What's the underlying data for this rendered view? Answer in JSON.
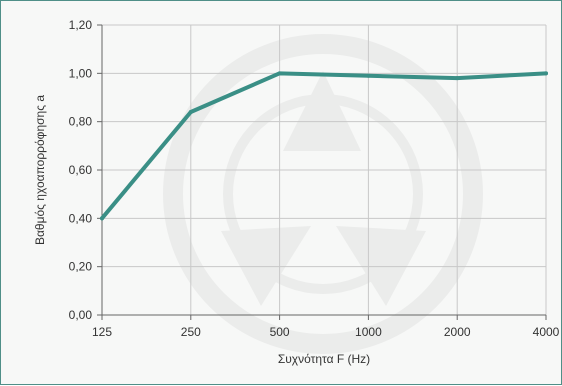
{
  "chart_data": {
    "type": "line",
    "title": "",
    "xlabel": "Συχνότητα F (Hz)",
    "ylabel": "Βαθμός ηχοαπορρόφησης a",
    "categories": [
      "125",
      "250",
      "500",
      "1000",
      "2000",
      "4000"
    ],
    "y_ticks": [
      "0,00",
      "0,20",
      "0,40",
      "0,60",
      "0,80",
      "1,00",
      "1,20"
    ],
    "ylim": [
      0,
      1.2
    ],
    "grid": true,
    "legend": "none",
    "series": [
      {
        "values": [
          0.4,
          0.84,
          1.0,
          0.99,
          0.98,
          1.0
        ]
      }
    ]
  },
  "colors": {
    "line": "#3a8f86",
    "grid": "#c8c8c8",
    "axis": "#666666",
    "border": "#4f8f88",
    "background": "#f7f8f7"
  },
  "watermark": "circular-logo-watermark"
}
